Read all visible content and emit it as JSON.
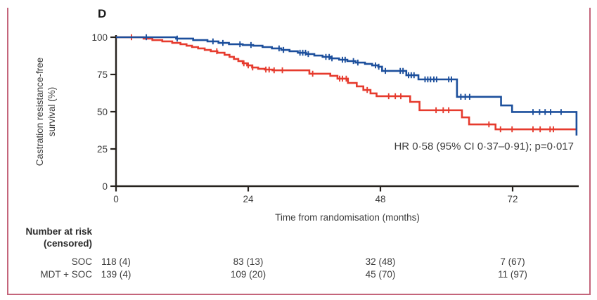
{
  "panel_label": "D",
  "colors": {
    "soc_red": "#e63b2e",
    "mdt_blue": "#1c4f9c",
    "axis": "#26221e",
    "text": "#3d3d3d",
    "frame_pink": "#c4657b"
  },
  "chart_data": {
    "type": "line",
    "subtype": "kaplan-meier-step-curve",
    "title": "",
    "xlabel": "Time from randomisation (months)",
    "ylabel_lines": [
      "Castration resistance-free",
      "survival (%)"
    ],
    "x_ticks": [
      0,
      24,
      48,
      72
    ],
    "y_ticks": [
      0,
      25,
      50,
      75,
      100
    ],
    "xlim": [
      0,
      84
    ],
    "ylim": [
      0,
      100
    ],
    "grid": false,
    "legend": "none",
    "annotation": "HR 0·58 (95% CI 0·37–0·91); p=0·017",
    "series": [
      {
        "name": "SOC",
        "color": "#e63b2e",
        "end_month": 83.6,
        "steps": [
          [
            0,
            100
          ],
          [
            5,
            99.1
          ],
          [
            6.6,
            98.1
          ],
          [
            8.4,
            97.2
          ],
          [
            10.2,
            96.2
          ],
          [
            11.7,
            95.3
          ],
          [
            12.8,
            94.3
          ],
          [
            13.8,
            93.4
          ],
          [
            14.9,
            92.5
          ],
          [
            16.1,
            91.5
          ],
          [
            17.2,
            90.6
          ],
          [
            18.4,
            89.6
          ],
          [
            19.7,
            88.2
          ],
          [
            20.6,
            86.8
          ],
          [
            21.4,
            85.4
          ],
          [
            22.2,
            84
          ],
          [
            23,
            82.5
          ],
          [
            23.8,
            81.1
          ],
          [
            24.7,
            79.7
          ],
          [
            25.8,
            78.8
          ],
          [
            27,
            78.3
          ],
          [
            28.4,
            77.8
          ],
          [
            35.1,
            75.5
          ],
          [
            38.9,
            74.1
          ],
          [
            40.2,
            72.2
          ],
          [
            42.1,
            69.3
          ],
          [
            43.7,
            67
          ],
          [
            44.9,
            64.6
          ],
          [
            46.2,
            62.3
          ],
          [
            47.3,
            60.4
          ],
          [
            53.4,
            56.6
          ],
          [
            55.1,
            51
          ],
          [
            62.8,
            46.2
          ],
          [
            64.1,
            41.5
          ],
          [
            68.9,
            38.2
          ]
        ],
        "censor_months": [
          2.8,
          18.3,
          23.2,
          24,
          24.8,
          27.2,
          27.8,
          28.7,
          30.2,
          35.7,
          40.6,
          41.1,
          41.8,
          45.6,
          49.5,
          50.7,
          51.7,
          58.1,
          59.4,
          60.4,
          67.7,
          69.8,
          71.9,
          75.7,
          77,
          78.8,
          79.4
        ]
      },
      {
        "name": "MDT + SOC",
        "color": "#1c4f9c",
        "end_month": 83.6,
        "steps": [
          [
            0,
            100
          ],
          [
            10.9,
            99.1
          ],
          [
            14,
            98.1
          ],
          [
            16.6,
            97.2
          ],
          [
            18.6,
            96.2
          ],
          [
            20.5,
            95.3
          ],
          [
            23,
            94.8
          ],
          [
            24.9,
            94.3
          ],
          [
            26.6,
            93.4
          ],
          [
            28.3,
            92.5
          ],
          [
            30,
            91.5
          ],
          [
            31.5,
            90.6
          ],
          [
            33,
            89.6
          ],
          [
            34.5,
            88.7
          ],
          [
            36,
            87.7
          ],
          [
            37.5,
            86.8
          ],
          [
            39,
            85.8
          ],
          [
            40.5,
            84.9
          ],
          [
            42,
            84
          ],
          [
            43.5,
            83
          ],
          [
            45.2,
            82.1
          ],
          [
            46.5,
            81.1
          ],
          [
            47.6,
            80.2
          ],
          [
            48.3,
            77.4
          ],
          [
            52.7,
            74.5
          ],
          [
            54.9,
            71.7
          ],
          [
            61.9,
            60
          ],
          [
            69.9,
            54.2
          ],
          [
            71.9,
            49.8
          ],
          [
            83.6,
            34
          ]
        ],
        "censor_months": [
          5.5,
          11.1,
          17.6,
          19.4,
          22.5,
          24.5,
          29.6,
          30.4,
          33.4,
          33.9,
          34.4,
          34.9,
          38.1,
          38.7,
          39.2,
          41.1,
          41.6,
          43.1,
          43.9,
          47.1,
          47.7,
          48.9,
          51.6,
          52.1,
          53.1,
          53.6,
          54.1,
          56.1,
          56.6,
          57.1,
          57.7,
          58.2,
          60.4,
          60.9,
          62.6,
          63.4,
          64.2,
          75.7,
          76.9,
          77.9,
          78.9,
          80.8
        ]
      }
    ]
  },
  "risk_table": {
    "title_line1": "Number at risk",
    "title_line2": "(censored)",
    "rows": [
      {
        "label": "SOC",
        "values": [
          "118 (4)",
          "83 (13)",
          "32 (48)",
          "7 (67)"
        ]
      },
      {
        "label": "MDT + SOC",
        "values": [
          "139 (4)",
          "109 (20)",
          "45 (70)",
          "11 (97)"
        ]
      }
    ]
  }
}
